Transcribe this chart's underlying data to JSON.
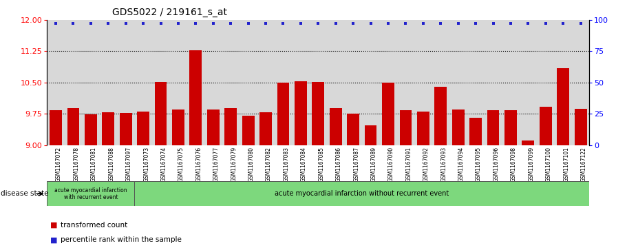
{
  "title": "GDS5022 / 219161_s_at",
  "categories": [
    "GSM1167072",
    "GSM1167078",
    "GSM1167081",
    "GSM1167088",
    "GSM1167097",
    "GSM1167073",
    "GSM1167074",
    "GSM1167075",
    "GSM1167076",
    "GSM1167077",
    "GSM1167079",
    "GSM1167080",
    "GSM1167082",
    "GSM1167083",
    "GSM1167084",
    "GSM1167085",
    "GSM1167086",
    "GSM1167087",
    "GSM1167089",
    "GSM1167090",
    "GSM1167091",
    "GSM1167092",
    "GSM1167093",
    "GSM1167094",
    "GSM1167095",
    "GSM1167096",
    "GSM1167098",
    "GSM1167099",
    "GSM1167100",
    "GSM1167101",
    "GSM1167122"
  ],
  "bar_values": [
    9.83,
    9.88,
    9.73,
    9.78,
    9.77,
    9.8,
    10.51,
    9.85,
    11.28,
    9.86,
    9.88,
    9.7,
    9.78,
    10.49,
    10.53,
    10.51,
    9.88,
    9.75,
    9.47,
    10.5,
    9.83,
    9.8,
    10.4,
    9.86,
    9.65,
    9.84,
    9.83,
    9.1,
    9.91,
    10.85,
    9.87
  ],
  "bar_color": "#cc0000",
  "dot_color": "#2222cc",
  "ylim_left": [
    9.0,
    12.0
  ],
  "ylim_right": [
    0,
    100
  ],
  "yticks_left": [
    9.0,
    9.75,
    10.5,
    11.25,
    12.0
  ],
  "yticks_right": [
    0,
    25,
    50,
    75,
    100
  ],
  "gridlines": [
    9.75,
    10.5,
    11.25
  ],
  "group1_label": "acute myocardial infarction\nwith recurrent event",
  "group2_label": "acute myocardial infarction without recurrent event",
  "group1_count": 5,
  "disease_state_label": "disease state",
  "legend_bar_label": "transformed count",
  "legend_dot_label": "percentile rank within the sample",
  "bg_plot": "#d8d8d8",
  "bg_green": "#7dd87d",
  "title_fontsize": 10,
  "bar_width": 0.7
}
